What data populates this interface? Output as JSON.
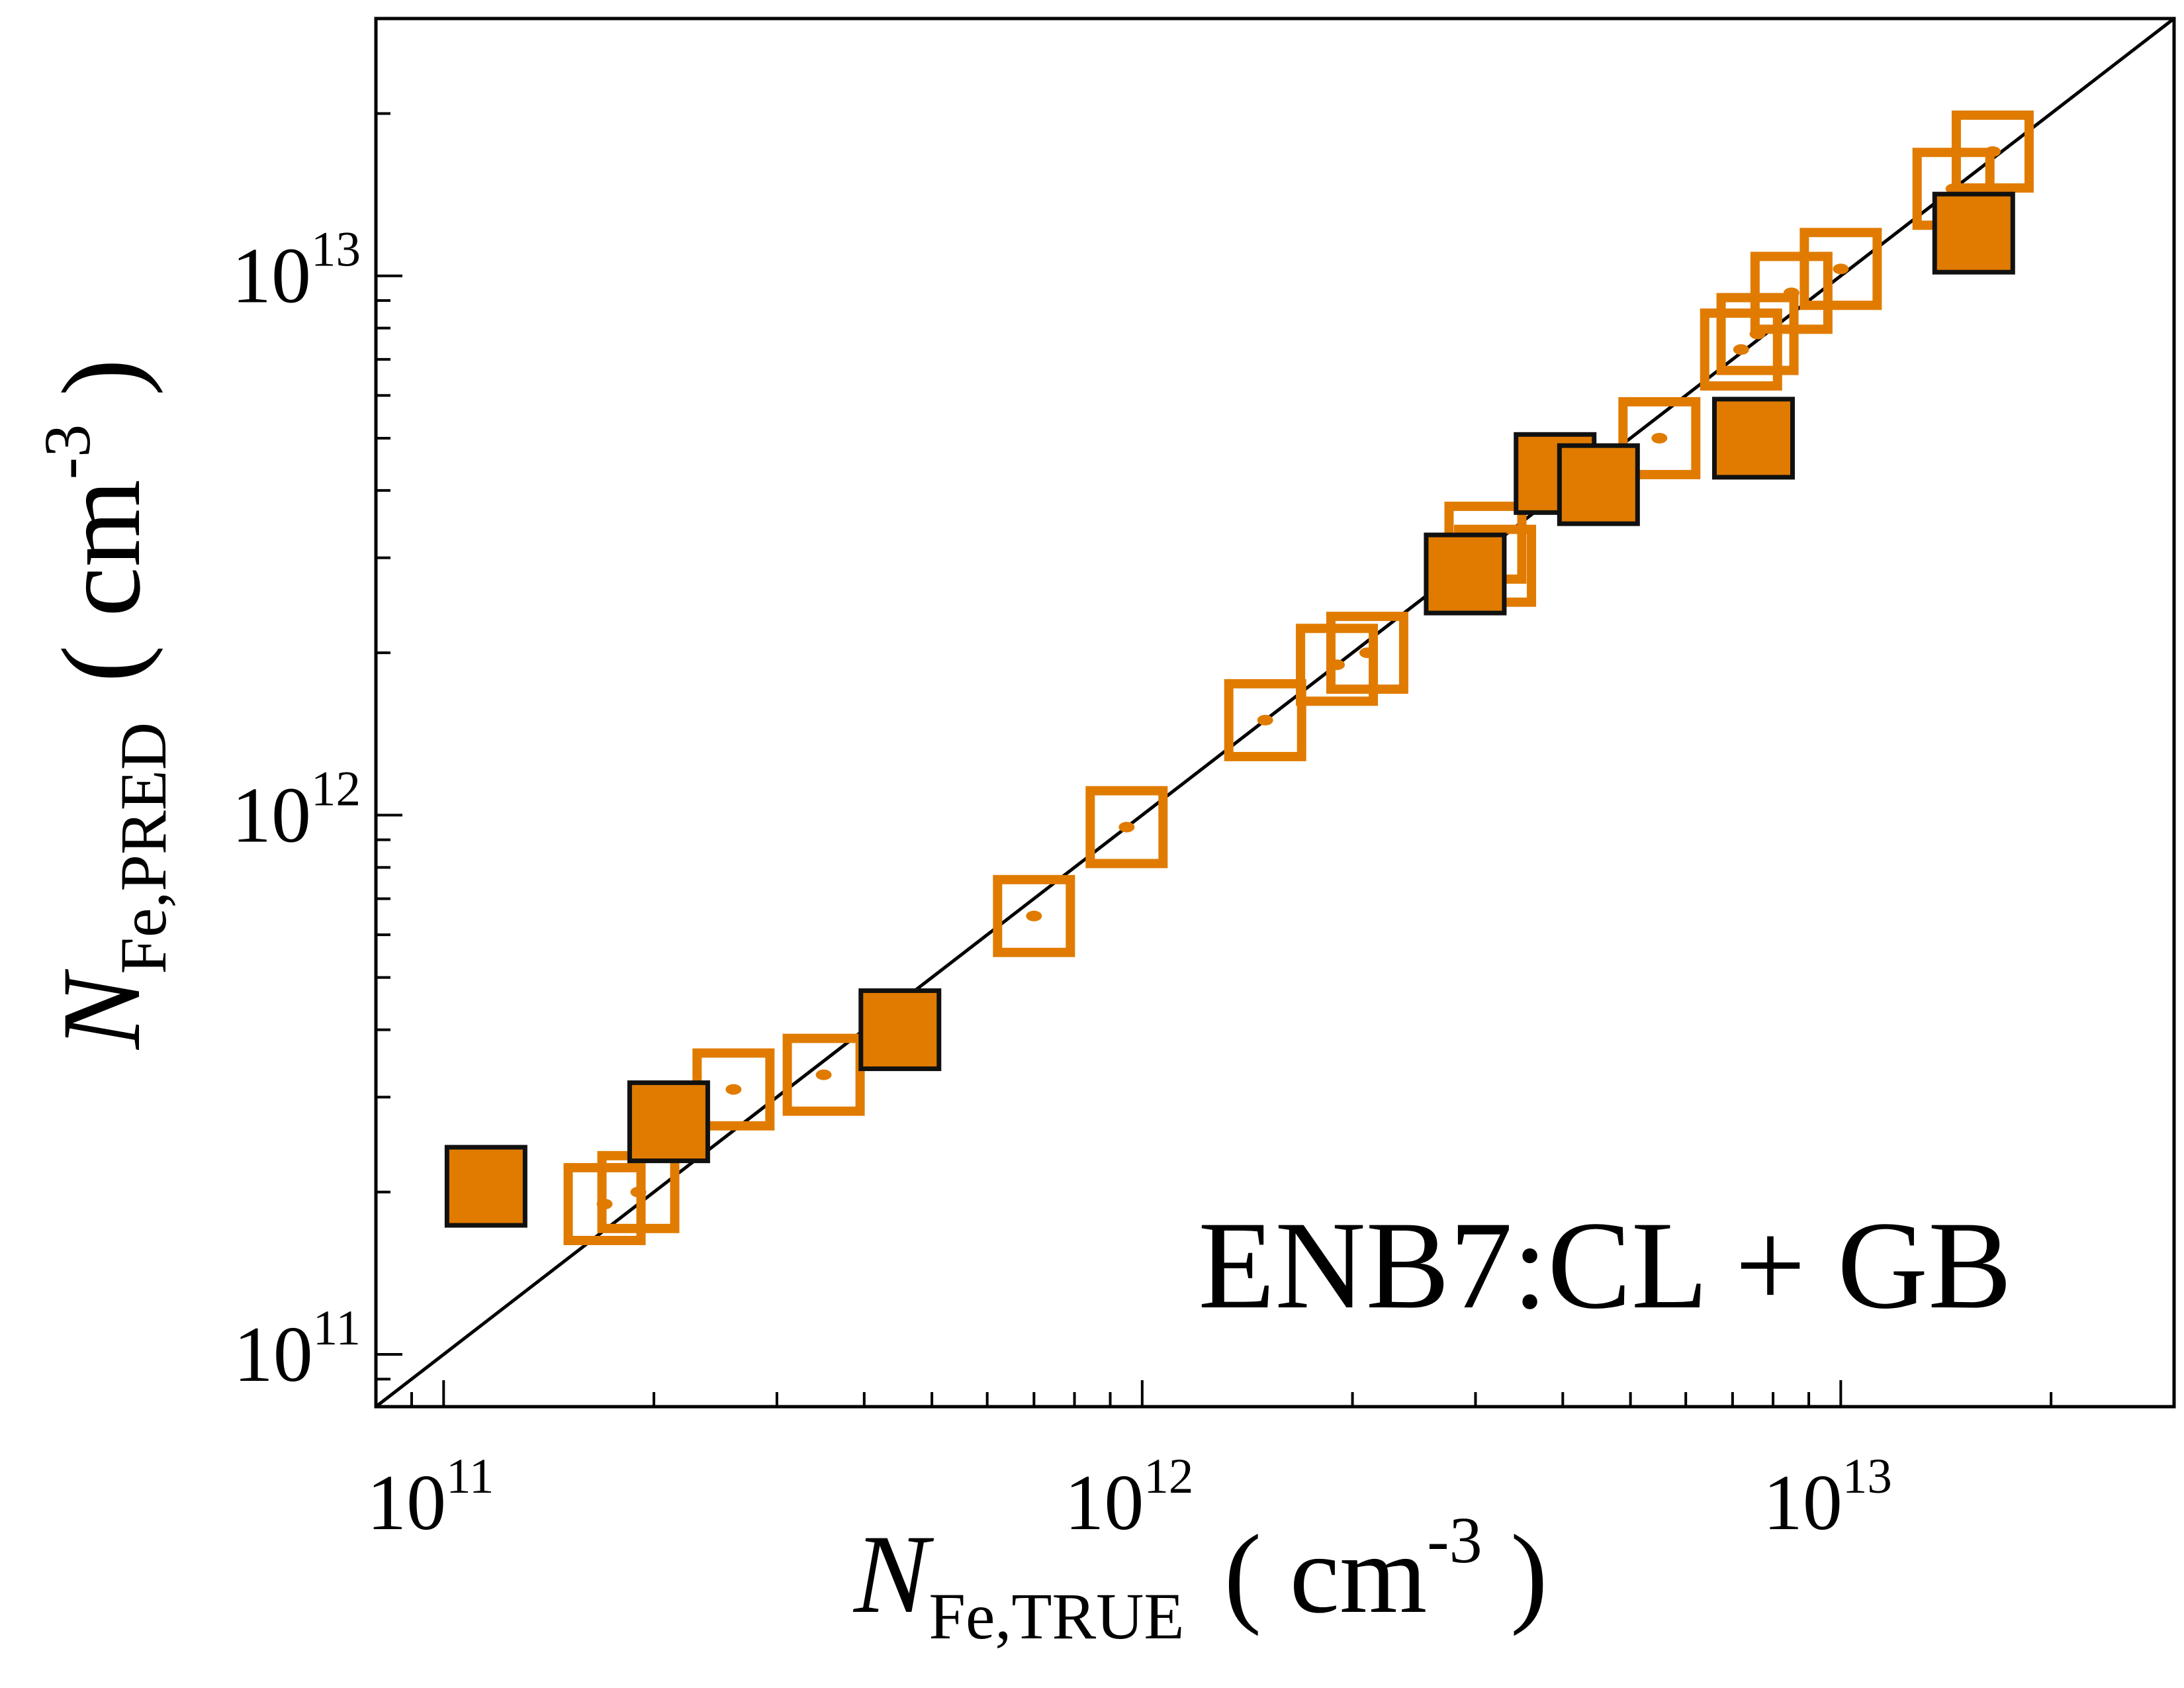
{
  "chart_data": {
    "type": "scatter",
    "xscale": "log",
    "yscale": "log",
    "xlim": [
      80000000000.0,
      30000000000000.0
    ],
    "ylim": [
      80000000000.0,
      30000000000000.0
    ],
    "x_tick_labels": [
      {
        "value": 100000000000.0,
        "base": "10",
        "exp": "11"
      },
      {
        "value": 1000000000000.0,
        "base": "10",
        "exp": "12"
      },
      {
        "value": 10000000000000.0,
        "base": "10",
        "exp": "13"
      }
    ],
    "y_tick_labels": [
      {
        "value": 100000000000.0,
        "base": "10",
        "exp": "11"
      },
      {
        "value": 1000000000000.0,
        "base": "10",
        "exp": "12"
      },
      {
        "value": 10000000000000.0,
        "base": "10",
        "exp": "13"
      }
    ],
    "xlabel": {
      "symbol": "N",
      "sub": "Fe,TRUE",
      "unit_open": "( cm",
      "unit_sup": "-3",
      "unit_close": " )"
    },
    "ylabel": {
      "symbol": "N",
      "sub": "Fe,PRED",
      "unit_open": "( cm",
      "unit_sup": "-3",
      "unit_close": " )"
    },
    "annotation": "ENB7:CL + GB",
    "reference_line": "y = x",
    "colors": {
      "marker": "#e07b00",
      "edge": "#111111"
    },
    "series": [
      {
        "style": "open",
        "points": [
          {
            "x": 170000000000.0,
            "y": 190000000000.0
          },
          {
            "x": 190000000000.0,
            "y": 200000000000.0
          },
          {
            "x": 260000000000.0,
            "y": 310000000000.0
          },
          {
            "x": 350000000000.0,
            "y": 330000000000.0
          },
          {
            "x": 700000000000.0,
            "y": 650000000000.0
          },
          {
            "x": 950000000000.0,
            "y": 950000000000.0
          },
          {
            "x": 1500000000000.0,
            "y": 1500000000000.0
          },
          {
            "x": 1900000000000.0,
            "y": 1900000000000.0
          },
          {
            "x": 2100000000000.0,
            "y": 2000000000000.0
          },
          {
            "x": 3100000000000.0,
            "y": 3200000000000.0
          },
          {
            "x": 3200000000000.0,
            "y": 2900000000000.0
          },
          {
            "x": 5500000000000.0,
            "y": 5000000000000.0
          },
          {
            "x": 7200000000000.0,
            "y": 7300000000000.0
          },
          {
            "x": 7600000000000.0,
            "y": 7800000000000.0
          },
          {
            "x": 8500000000000.0,
            "y": 9300000000000.0
          },
          {
            "x": 10000000000000.0,
            "y": 10300000000000.0
          },
          {
            "x": 14500000000000.0,
            "y": 14500000000000.0
          },
          {
            "x": 16500000000000.0,
            "y": 17000000000000.0
          }
        ]
      },
      {
        "style": "filled",
        "points": [
          {
            "x": 115000000000.0,
            "y": 205000000000.0
          },
          {
            "x": 210000000000.0,
            "y": 270000000000.0
          },
          {
            "x": 450000000000.0,
            "y": 400000000000.0
          },
          {
            "x": 2900000000000.0,
            "y": 2800000000000.0
          },
          {
            "x": 3900000000000.0,
            "y": 4300000000000.0
          },
          {
            "x": 4500000000000.0,
            "y": 4100000000000.0
          },
          {
            "x": 7500000000000.0,
            "y": 5000000000000.0
          },
          {
            "x": 15500000000000.0,
            "y": 12000000000000.0
          }
        ]
      }
    ]
  }
}
